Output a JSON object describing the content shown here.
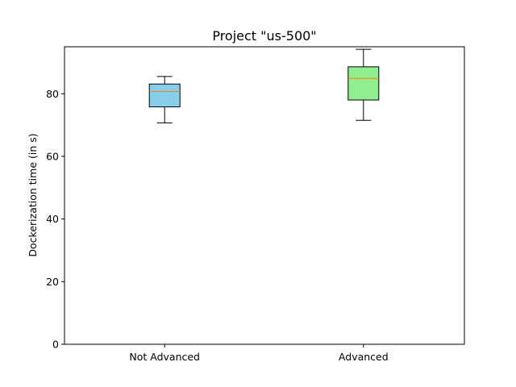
{
  "chart_data": {
    "type": "boxplot",
    "title": "Project \"us-500\"",
    "xlabel": "",
    "ylabel": "Dockerization time (in s)",
    "ylim": [
      0,
      95
    ],
    "yticks": [
      0,
      20,
      40,
      60,
      80
    ],
    "grid": false,
    "categories": [
      "Not Advanced",
      "Advanced"
    ],
    "boxes": [
      {
        "name": "Not Advanced",
        "whisker_low": 70.7,
        "q1": 75.8,
        "median": 80.7,
        "q3": 83.1,
        "whisker_high": 85.5,
        "color": "#87ceeb"
      },
      {
        "name": "Advanced",
        "whisker_low": 71.5,
        "q1": 78.0,
        "median": 84.9,
        "q3": 88.6,
        "whisker_high": 94.2,
        "color": "#90ee90"
      }
    ],
    "median_color": "#ff7f0e"
  }
}
